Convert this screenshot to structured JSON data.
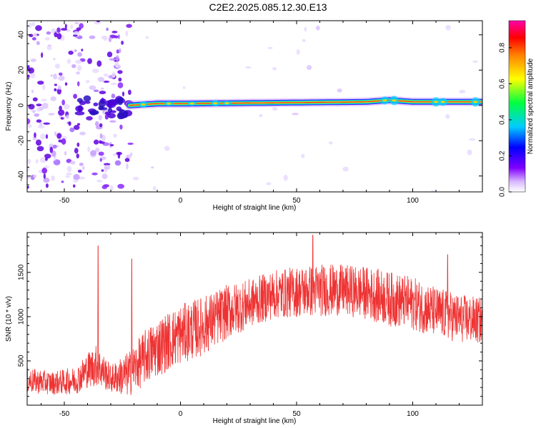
{
  "title": "C2E2.2025.085.12.30.E13",
  "chart_data": [
    {
      "type": "heatmap",
      "xlabel": "Height of straight line (km)",
      "ylabel": "Frequency (Hz)",
      "xlim": [
        -66,
        130
      ],
      "ylim": [
        -49,
        48
      ],
      "xticks": [
        -50,
        0,
        50,
        100
      ],
      "yticks": [
        -40,
        -20,
        0,
        20,
        40
      ],
      "xtick_labels": [
        "-50",
        "0",
        "50",
        "100"
      ],
      "ytick_labels": [
        "-40",
        "-20",
        "0",
        "20",
        "40"
      ],
      "ridge": {
        "description_x_range": [
          -22,
          130
        ],
        "frequency_hz": [
          {
            "x": -22,
            "f": 0
          },
          {
            "x": -10,
            "f": 1
          },
          {
            "x": 0,
            "f": 1
          },
          {
            "x": 40,
            "f": 1.5
          },
          {
            "x": 80,
            "f": 2
          },
          {
            "x": 90,
            "f": 3
          },
          {
            "x": 100,
            "f": 2
          },
          {
            "x": 130,
            "f": 2
          }
        ]
      },
      "colorbar": {
        "label": "Normalized spectral amplitude",
        "range": [
          0,
          0.95
        ],
        "ticks": [
          0.0,
          0.2,
          0.4,
          0.6,
          0.8
        ],
        "tick_labels": [
          "0.0",
          "0.2",
          "0.4",
          "0.6",
          "0.8"
        ],
        "colormap": "rainbow (white → violet → blue → cyan → green → yellow → red → magenta)"
      },
      "grid": false,
      "legend": "none"
    },
    {
      "type": "line",
      "xlabel": "Height of straight line (km)",
      "ylabel": "SNR (10 * v/v)",
      "xlim": [
        -66,
        130
      ],
      "ylim": [
        0,
        1950
      ],
      "xticks": [
        -50,
        0,
        50,
        100
      ],
      "yticks": [
        500,
        1000,
        1500
      ],
      "xtick_labels": [
        "-50",
        "0",
        "50",
        "100"
      ],
      "ytick_labels": [
        "500",
        "1000",
        "1500"
      ],
      "color": "#ee3333",
      "grid": false,
      "legend": "none",
      "envelope": {
        "x": [
          -66,
          -55,
          -45,
          -40,
          -36,
          -30,
          -22,
          -15,
          -10,
          0,
          10,
          20,
          30,
          40,
          50,
          60,
          70,
          80,
          90,
          100,
          110,
          120,
          130
        ],
        "median": [
          280,
          250,
          280,
          400,
          450,
          300,
          350,
          550,
          650,
          800,
          900,
          1050,
          1150,
          1250,
          1280,
          1300,
          1300,
          1270,
          1200,
          1150,
          1050,
          980,
          950
        ],
        "spread": [
          120,
          110,
          130,
          170,
          200,
          130,
          220,
          260,
          280,
          280,
          280,
          260,
          230,
          230,
          240,
          250,
          240,
          250,
          260,
          250,
          240,
          230,
          220
        ]
      },
      "spikes": [
        {
          "x": -35.5,
          "y": 1800
        },
        {
          "x": -21,
          "y": 1650
        },
        {
          "x": 57,
          "y": 1920
        },
        {
          "x": 115,
          "y": 1700
        }
      ]
    }
  ]
}
